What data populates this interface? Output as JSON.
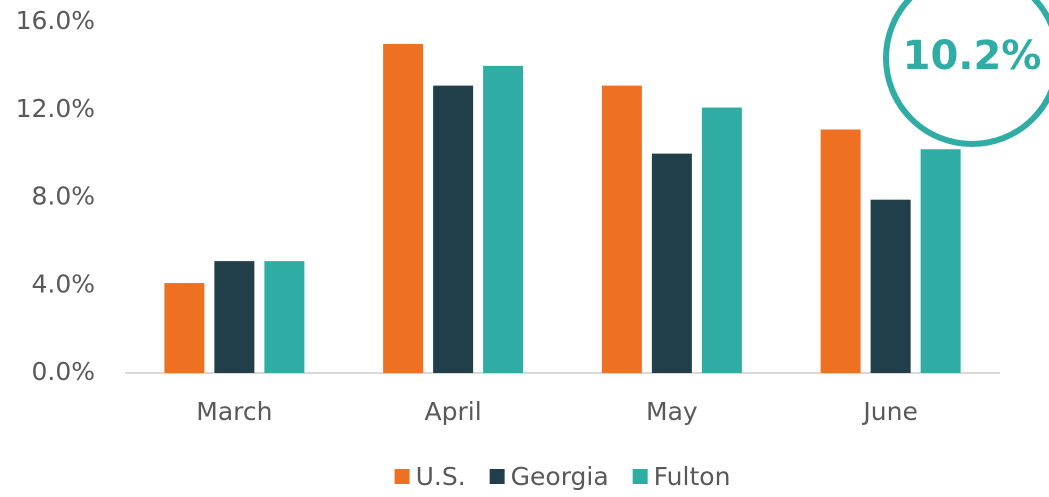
{
  "chart_data": {
    "type": "bar",
    "categories": [
      "March",
      "April",
      "May",
      "June"
    ],
    "series": [
      {
        "name": "U.S.",
        "color": "#ee7023",
        "values": [
          4.1,
          15.0,
          13.1,
          11.1
        ]
      },
      {
        "name": "Georgia",
        "color": "#213f4b",
        "values": [
          5.1,
          13.1,
          10.0,
          7.9
        ]
      },
      {
        "name": "Fulton",
        "color": "#2fada5",
        "values": [
          5.1,
          14.0,
          12.1,
          10.2
        ]
      }
    ],
    "ylim": [
      0,
      16
    ],
    "yticks": [
      {
        "value": 0,
        "label": "0.0%"
      },
      {
        "value": 4,
        "label": "4.0%"
      },
      {
        "value": 8,
        "label": "8.0%"
      },
      {
        "value": 12,
        "label": "12.0%"
      },
      {
        "value": 16,
        "label": "16.0%"
      }
    ],
    "grid": false,
    "legend": "bottom",
    "annotation": "10.2%"
  }
}
